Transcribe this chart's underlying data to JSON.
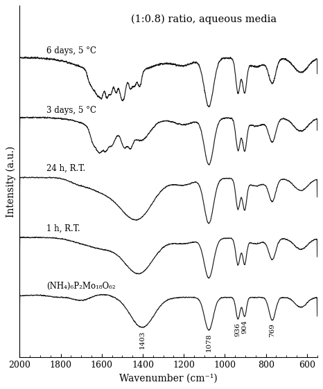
{
  "title": "(1:0.8) ratio, aqueous media",
  "xlabel": "Wavenumber (cm⁻¹)",
  "ylabel": "Intensity (a.u.)",
  "xticks": [
    2000,
    1800,
    1600,
    1400,
    1200,
    1000,
    800,
    600
  ],
  "spectra_labels": [
    "(NH₄)₆P₂Mo₁₈O₆₂",
    "1 h, R.T.",
    "24 h, R.T.",
    "3 days, 5 °C",
    "6 days, 5 °C"
  ],
  "offsets": [
    0.0,
    1.1,
    2.2,
    3.3,
    4.4
  ],
  "line_color": "#1a1a1a",
  "background_color": "#ffffff",
  "title_fontsize": 10.5,
  "label_fontsize": 10,
  "tick_fontsize": 9
}
